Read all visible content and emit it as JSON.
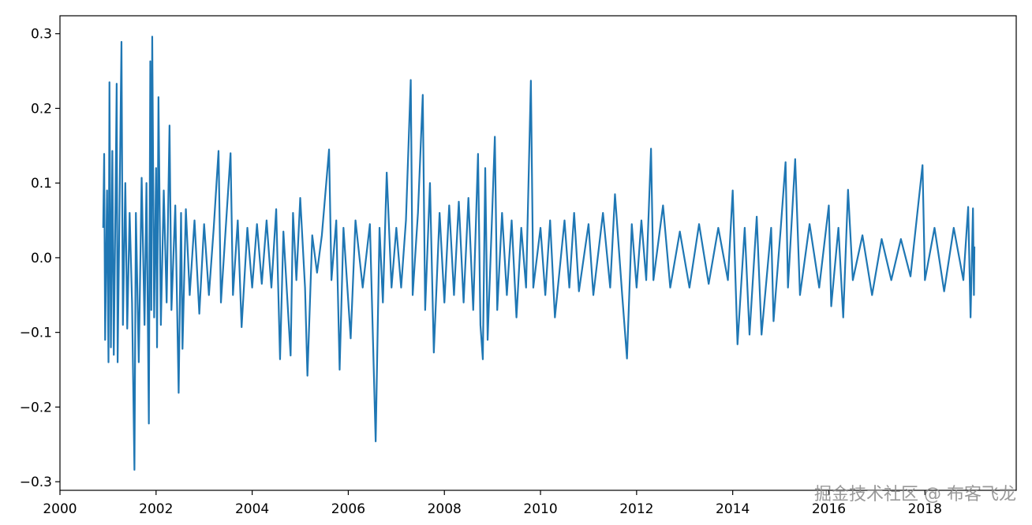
{
  "chart_data": {
    "type": "line",
    "color": "#1f77b4",
    "watermark": "掘金技术社区 @ 布客飞龙",
    "xlim": [
      2000,
      2019.9
    ],
    "xticks": [
      2000,
      2002,
      2004,
      2006,
      2008,
      2010,
      2012,
      2014,
      2016,
      2018
    ],
    "ylim": [
      -0.3115,
      0.324
    ],
    "yticks": [
      {
        "value": -0.3,
        "label": "−0.3"
      },
      {
        "value": -0.2,
        "label": "−0.2"
      },
      {
        "value": -0.1,
        "label": "−0.1"
      },
      {
        "value": 0,
        "label": "0.0"
      },
      0.1,
      0.2,
      0.3
    ],
    "x": [
      2000.9,
      2000.92,
      2000.94,
      2000.98,
      2001.01,
      2001.03,
      2001.06,
      2001.09,
      2001.12,
      2001.16,
      2001.18,
      2001.2,
      2001.24,
      2001.28,
      2001.31,
      2001.36,
      2001.4,
      2001.45,
      2001.5,
      2001.55,
      2001.58,
      2001.64,
      2001.7,
      2001.76,
      2001.8,
      2001.85,
      2001.88,
      2001.9,
      2001.92,
      2001.96,
      2002.0,
      2002.02,
      2002.05,
      2002.1,
      2002.16,
      2002.22,
      2002.28,
      2002.32,
      2002.4,
      2002.47,
      2002.52,
      2002.55,
      2002.62,
      2002.7,
      2002.8,
      2002.9,
      2003.0,
      2003.1,
      2003.2,
      2003.3,
      2003.35,
      2003.45,
      2003.55,
      2003.6,
      2003.7,
      2003.78,
      2003.9,
      2004.0,
      2004.1,
      2004.2,
      2004.3,
      2004.4,
      2004.5,
      2004.58,
      2004.65,
      2004.8,
      2004.85,
      2004.92,
      2005.0,
      2005.1,
      2005.15,
      2005.25,
      2005.35,
      2005.45,
      2005.6,
      2005.65,
      2005.75,
      2005.82,
      2005.9,
      2006.05,
      2006.15,
      2006.3,
      2006.45,
      2006.57,
      2006.65,
      2006.72,
      2006.8,
      2006.9,
      2007.0,
      2007.1,
      2007.2,
      2007.3,
      2007.34,
      2007.45,
      2007.55,
      2007.6,
      2007.7,
      2007.78,
      2007.9,
      2008.0,
      2008.1,
      2008.2,
      2008.3,
      2008.4,
      2008.5,
      2008.6,
      2008.7,
      2008.75,
      2008.8,
      2008.85,
      2008.9,
      2009.0,
      2009.05,
      2009.1,
      2009.2,
      2009.3,
      2009.4,
      2009.5,
      2009.6,
      2009.7,
      2009.8,
      2009.85,
      2010.0,
      2010.1,
      2010.2,
      2010.3,
      2010.5,
      2010.6,
      2010.7,
      2010.8,
      2011.0,
      2011.1,
      2011.3,
      2011.45,
      2011.55,
      2011.7,
      2011.8,
      2011.9,
      2012.0,
      2012.1,
      2012.2,
      2012.3,
      2012.35,
      2012.55,
      2012.7,
      2012.9,
      2013.1,
      2013.3,
      2013.5,
      2013.7,
      2013.9,
      2014.0,
      2014.1,
      2014.25,
      2014.35,
      2014.5,
      2014.6,
      2014.8,
      2014.85,
      2015.0,
      2015.1,
      2015.15,
      2015.3,
      2015.4,
      2015.6,
      2015.8,
      2016.0,
      2016.05,
      2016.2,
      2016.3,
      2016.4,
      2016.5,
      2016.7,
      2016.9,
      2017.1,
      2017.3,
      2017.5,
      2017.7,
      2017.95,
      2018.0,
      2018.2,
      2018.4,
      2018.6,
      2018.8,
      2018.9,
      2018.95,
      2019.0,
      2019.02,
      2019.03
    ],
    "values": [
      0.04,
      0.139,
      -0.11,
      0.09,
      -0.14,
      0.235,
      -0.12,
      0.143,
      -0.13,
      0.1,
      0.233,
      -0.14,
      0.07,
      0.289,
      -0.09,
      0.1,
      -0.095,
      0.06,
      -0.06,
      -0.284,
      0.06,
      -0.14,
      0.107,
      -0.09,
      0.1,
      -0.222,
      0.263,
      -0.07,
      0.296,
      -0.08,
      0.12,
      -0.12,
      0.215,
      -0.09,
      0.09,
      -0.06,
      0.177,
      -0.07,
      0.07,
      -0.181,
      0.06,
      -0.122,
      0.065,
      -0.05,
      0.05,
      -0.075,
      0.045,
      -0.05,
      0.04,
      0.143,
      -0.06,
      0.04,
      0.14,
      -0.05,
      0.05,
      -0.093,
      0.04,
      -0.04,
      0.045,
      -0.035,
      0.05,
      -0.04,
      0.065,
      -0.136,
      0.035,
      -0.131,
      0.06,
      -0.03,
      0.08,
      -0.04,
      -0.158,
      0.03,
      -0.02,
      0.03,
      0.145,
      -0.03,
      0.05,
      -0.15,
      0.04,
      -0.108,
      0.05,
      -0.04,
      0.045,
      -0.246,
      0.04,
      -0.06,
      0.114,
      -0.04,
      0.04,
      -0.04,
      0.05,
      0.238,
      -0.05,
      0.06,
      0.218,
      -0.07,
      0.1,
      -0.127,
      0.06,
      -0.06,
      0.07,
      -0.05,
      0.075,
      -0.06,
      0.08,
      -0.07,
      0.139,
      -0.09,
      -0.136,
      0.12,
      -0.11,
      0.07,
      0.162,
      -0.07,
      0.06,
      -0.05,
      0.05,
      -0.08,
      0.04,
      -0.04,
      0.237,
      -0.04,
      0.04,
      -0.05,
      0.05,
      -0.08,
      0.05,
      -0.04,
      0.06,
      -0.045,
      0.045,
      -0.05,
      0.06,
      -0.04,
      0.085,
      -0.05,
      -0.135,
      0.045,
      -0.04,
      0.05,
      -0.03,
      0.146,
      -0.03,
      0.07,
      -0.04,
      0.035,
      -0.04,
      0.045,
      -0.035,
      0.04,
      -0.03,
      0.09,
      -0.116,
      0.04,
      -0.103,
      0.055,
      -0.103,
      0.04,
      -0.085,
      0.04,
      0.128,
      -0.04,
      0.132,
      -0.05,
      0.045,
      -0.04,
      0.07,
      -0.065,
      0.04,
      -0.08,
      0.091,
      -0.03,
      0.03,
      -0.05,
      0.025,
      -0.03,
      0.025,
      -0.025,
      0.124,
      -0.03,
      0.04,
      -0.045,
      0.04,
      -0.03,
      0.068,
      -0.08,
      0.066,
      -0.05,
      0.015
    ]
  }
}
